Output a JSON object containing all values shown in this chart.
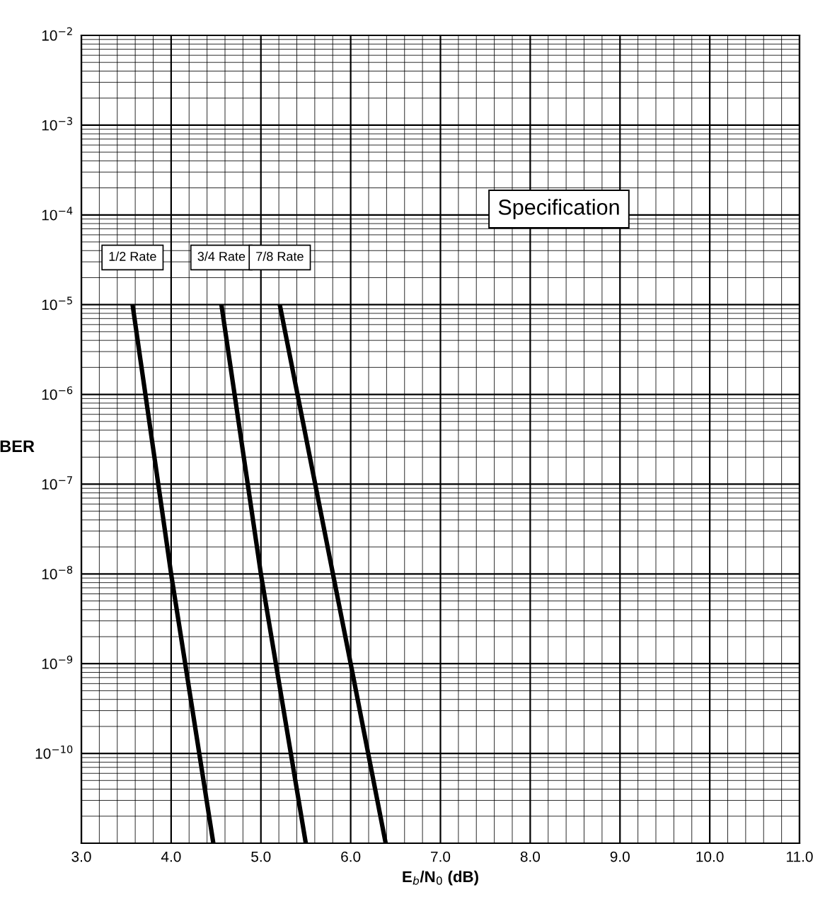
{
  "chart_data": {
    "type": "line",
    "xlabel": "E$_{b}$/N$_{0}$ (dB)",
    "ylabel": "BER",
    "log": "y",
    "grid": true,
    "legend": false,
    "marker": "none",
    "line_style": "solid",
    "xlim": [
      3,
      11
    ],
    "ylim": [
      1e-11,
      0.01
    ],
    "xticks": [
      {
        "value": 3,
        "label": "3.0"
      },
      {
        "value": 4,
        "label": "4.0"
      },
      {
        "value": 5,
        "label": "5.0"
      },
      {
        "value": 6,
        "label": "6.0"
      },
      {
        "value": 7,
        "label": "7.0"
      },
      {
        "value": 8,
        "label": "8.0"
      },
      {
        "value": 9,
        "label": "9.0"
      },
      {
        "value": 10,
        "label": "10.0"
      },
      {
        "value": 11,
        "label": "11.0"
      }
    ],
    "yticks": [
      {
        "value": 1e-11,
        "label": null
      },
      {
        "value": 1e-10,
        "label": "10$^{−10}$"
      },
      {
        "value": 1e-09,
        "label": "10$^{−9}$"
      },
      {
        "value": 1e-08,
        "label": "10$^{−8}$"
      },
      {
        "value": 1e-07,
        "label": "10$^{−7}$"
      },
      {
        "value": 1e-06,
        "label": "10$^{−6}$"
      },
      {
        "value": 1e-05,
        "label": "10$^{−5}$"
      },
      {
        "value": 0.0001,
        "label": "10$^{−4}$"
      },
      {
        "value": 0.001,
        "label": "10$^{−3}$"
      },
      {
        "value": 0.01,
        "label": "10$^{−2}$"
      }
    ],
    "series": [
      {
        "name": "1/2 Rate",
        "color": "#000000",
        "x": [
          3.57,
          4.0,
          4.47
        ],
        "values": [
          1e-05,
          1e-08,
          1e-11
        ]
      },
      {
        "name": "3/4 Rate",
        "color": "#000000",
        "x": [
          4.56,
          5.0,
          5.5
        ],
        "values": [
          1e-05,
          1e-08,
          1e-11
        ]
      },
      {
        "name": "7/8 Rate",
        "color": "#000000",
        "x": [
          5.21,
          6.0,
          6.39
        ],
        "values": [
          1e-05,
          1e-09,
          1e-11
        ]
      }
    ],
    "annotations": [
      "Specification"
    ]
  }
}
